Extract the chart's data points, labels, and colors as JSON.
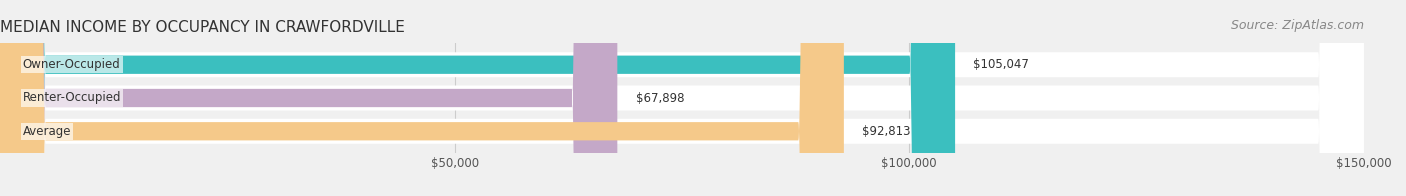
{
  "title": "MEDIAN INCOME BY OCCUPANCY IN CRAWFORDVILLE",
  "source": "Source: ZipAtlas.com",
  "categories": [
    "Owner-Occupied",
    "Renter-Occupied",
    "Average"
  ],
  "values": [
    105047,
    67898,
    92813
  ],
  "labels": [
    "$105,047",
    "$67,898",
    "$92,813"
  ],
  "bar_colors": [
    "#3bbfbf",
    "#c4a8c8",
    "#f5c98a"
  ],
  "xlim": [
    0,
    150000
  ],
  "xticks": [
    0,
    50000,
    100000,
    150000
  ],
  "xticklabels": [
    "",
    "$50,000",
    "$100,000",
    "$150,000"
  ],
  "title_fontsize": 11,
  "source_fontsize": 9,
  "label_fontsize": 8.5,
  "tick_fontsize": 8.5
}
